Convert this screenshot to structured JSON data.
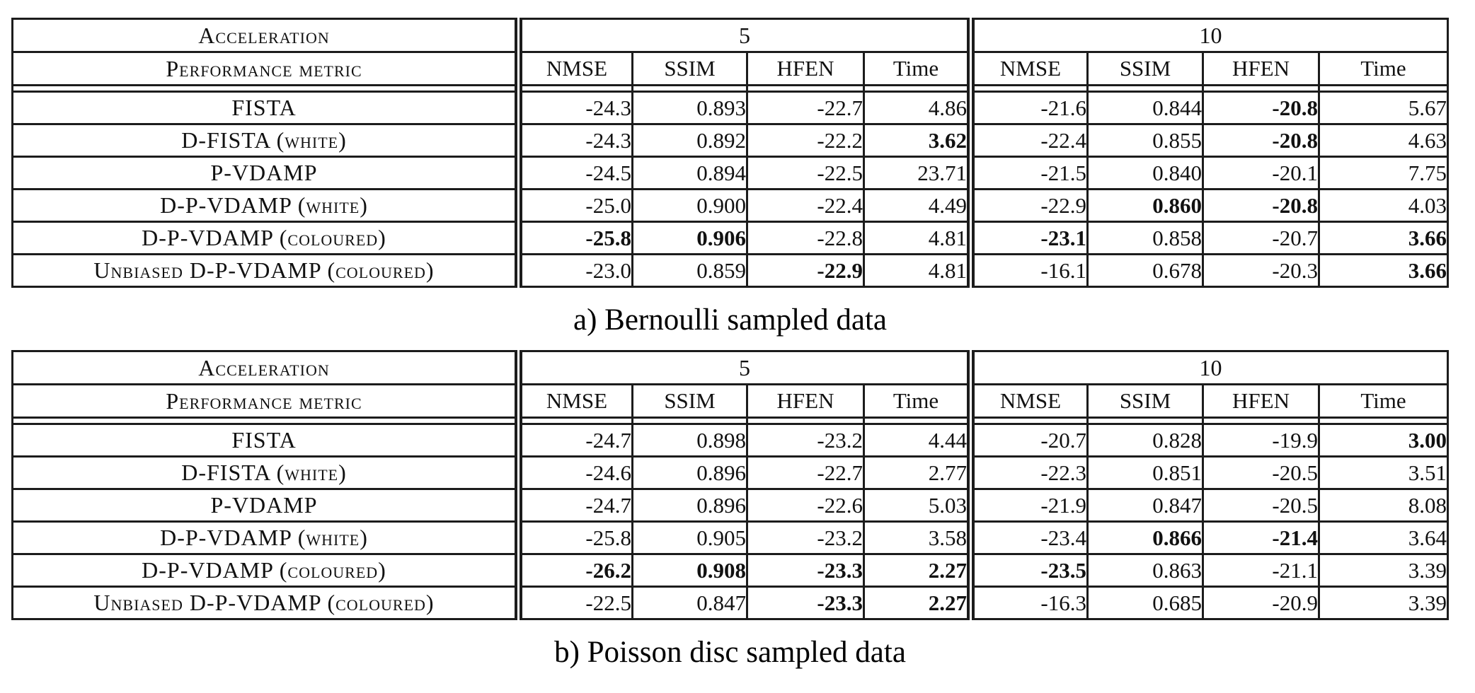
{
  "page": {
    "background": "#ffffff",
    "text_color": "#111111",
    "border_color": "#1c1c1c"
  },
  "tables": [
    {
      "caption": "a) Bernoulli sampled data",
      "header": {
        "row1_label": "Acceleration",
        "row2_label": "Performance metric",
        "groups": [
          "5",
          "10"
        ],
        "metrics": [
          "NMSE",
          "SSIM",
          "HFEN",
          "Time"
        ]
      },
      "rows": [
        {
          "label": "FISTA",
          "cells": [
            {
              "v": "-24.3",
              "bold": false
            },
            {
              "v": "0.893",
              "bold": false
            },
            {
              "v": "-22.7",
              "bold": false
            },
            {
              "v": "4.86",
              "bold": false
            },
            {
              "v": "-21.6",
              "bold": false
            },
            {
              "v": "0.844",
              "bold": false
            },
            {
              "v": "-20.8",
              "bold": true
            },
            {
              "v": "5.67",
              "bold": false
            }
          ]
        },
        {
          "label": "D-FISTA (white)",
          "cells": [
            {
              "v": "-24.3",
              "bold": false
            },
            {
              "v": "0.892",
              "bold": false
            },
            {
              "v": "-22.2",
              "bold": false
            },
            {
              "v": "3.62",
              "bold": true
            },
            {
              "v": "-22.4",
              "bold": false
            },
            {
              "v": "0.855",
              "bold": false
            },
            {
              "v": "-20.8",
              "bold": true
            },
            {
              "v": "4.63",
              "bold": false
            }
          ]
        },
        {
          "label": "P-VDAMP",
          "cells": [
            {
              "v": "-24.5",
              "bold": false
            },
            {
              "v": "0.894",
              "bold": false
            },
            {
              "v": "-22.5",
              "bold": false
            },
            {
              "v": "23.71",
              "bold": false
            },
            {
              "v": "-21.5",
              "bold": false
            },
            {
              "v": "0.840",
              "bold": false
            },
            {
              "v": "-20.1",
              "bold": false
            },
            {
              "v": "7.75",
              "bold": false
            }
          ]
        },
        {
          "label": "D-P-VDAMP (white)",
          "cells": [
            {
              "v": "-25.0",
              "bold": false
            },
            {
              "v": "0.900",
              "bold": false
            },
            {
              "v": "-22.4",
              "bold": false
            },
            {
              "v": "4.49",
              "bold": false
            },
            {
              "v": "-22.9",
              "bold": false
            },
            {
              "v": "0.860",
              "bold": true
            },
            {
              "v": "-20.8",
              "bold": true
            },
            {
              "v": "4.03",
              "bold": false
            }
          ]
        },
        {
          "label": "D-P-VDAMP (coloured)",
          "cells": [
            {
              "v": "-25.8",
              "bold": true
            },
            {
              "v": "0.906",
              "bold": true
            },
            {
              "v": "-22.8",
              "bold": false
            },
            {
              "v": "4.81",
              "bold": false
            },
            {
              "v": "-23.1",
              "bold": true
            },
            {
              "v": "0.858",
              "bold": false
            },
            {
              "v": "-20.7",
              "bold": false
            },
            {
              "v": "3.66",
              "bold": true
            }
          ]
        },
        {
          "label": "Unbiased D-P-VDAMP (coloured)",
          "cells": [
            {
              "v": "-23.0",
              "bold": false
            },
            {
              "v": "0.859",
              "bold": false
            },
            {
              "v": "-22.9",
              "bold": true
            },
            {
              "v": "4.81",
              "bold": false
            },
            {
              "v": "-16.1",
              "bold": false
            },
            {
              "v": "0.678",
              "bold": false
            },
            {
              "v": "-20.3",
              "bold": false
            },
            {
              "v": "3.66",
              "bold": true
            }
          ]
        }
      ]
    },
    {
      "caption": "b) Poisson disc sampled data",
      "header": {
        "row1_label": "Acceleration",
        "row2_label": "Performance metric",
        "groups": [
          "5",
          "10"
        ],
        "metrics": [
          "NMSE",
          "SSIM",
          "HFEN",
          "Time"
        ]
      },
      "rows": [
        {
          "label": "FISTA",
          "cells": [
            {
              "v": "-24.7",
              "bold": false
            },
            {
              "v": "0.898",
              "bold": false
            },
            {
              "v": "-23.2",
              "bold": false
            },
            {
              "v": "4.44",
              "bold": false
            },
            {
              "v": "-20.7",
              "bold": false
            },
            {
              "v": "0.828",
              "bold": false
            },
            {
              "v": "-19.9",
              "bold": false
            },
            {
              "v": "3.00",
              "bold": true
            }
          ]
        },
        {
          "label": "D-FISTA (white)",
          "cells": [
            {
              "v": "-24.6",
              "bold": false
            },
            {
              "v": "0.896",
              "bold": false
            },
            {
              "v": "-22.7",
              "bold": false
            },
            {
              "v": "2.77",
              "bold": false
            },
            {
              "v": "-22.3",
              "bold": false
            },
            {
              "v": "0.851",
              "bold": false
            },
            {
              "v": "-20.5",
              "bold": false
            },
            {
              "v": "3.51",
              "bold": false
            }
          ]
        },
        {
          "label": "P-VDAMP",
          "cells": [
            {
              "v": "-24.7",
              "bold": false
            },
            {
              "v": "0.896",
              "bold": false
            },
            {
              "v": "-22.6",
              "bold": false
            },
            {
              "v": "5.03",
              "bold": false
            },
            {
              "v": "-21.9",
              "bold": false
            },
            {
              "v": "0.847",
              "bold": false
            },
            {
              "v": "-20.5",
              "bold": false
            },
            {
              "v": "8.08",
              "bold": false
            }
          ]
        },
        {
          "label": "D-P-VDAMP (white)",
          "cells": [
            {
              "v": "-25.8",
              "bold": false
            },
            {
              "v": "0.905",
              "bold": false
            },
            {
              "v": "-23.2",
              "bold": false
            },
            {
              "v": "3.58",
              "bold": false
            },
            {
              "v": "-23.4",
              "bold": false
            },
            {
              "v": "0.866",
              "bold": true
            },
            {
              "v": "-21.4",
              "bold": true
            },
            {
              "v": "3.64",
              "bold": false
            }
          ]
        },
        {
          "label": "D-P-VDAMP (coloured)",
          "cells": [
            {
              "v": "-26.2",
              "bold": true
            },
            {
              "v": "0.908",
              "bold": true
            },
            {
              "v": "-23.3",
              "bold": true
            },
            {
              "v": "2.27",
              "bold": true
            },
            {
              "v": "-23.5",
              "bold": true
            },
            {
              "v": "0.863",
              "bold": false
            },
            {
              "v": "-21.1",
              "bold": false
            },
            {
              "v": "3.39",
              "bold": false
            }
          ]
        },
        {
          "label": "Unbiased D-P-VDAMP (coloured)",
          "cells": [
            {
              "v": "-22.5",
              "bold": false
            },
            {
              "v": "0.847",
              "bold": false
            },
            {
              "v": "-23.3",
              "bold": true
            },
            {
              "v": "2.27",
              "bold": true
            },
            {
              "v": "-16.3",
              "bold": false
            },
            {
              "v": "0.685",
              "bold": false
            },
            {
              "v": "-20.9",
              "bold": false
            },
            {
              "v": "3.39",
              "bold": false
            }
          ]
        }
      ]
    }
  ]
}
